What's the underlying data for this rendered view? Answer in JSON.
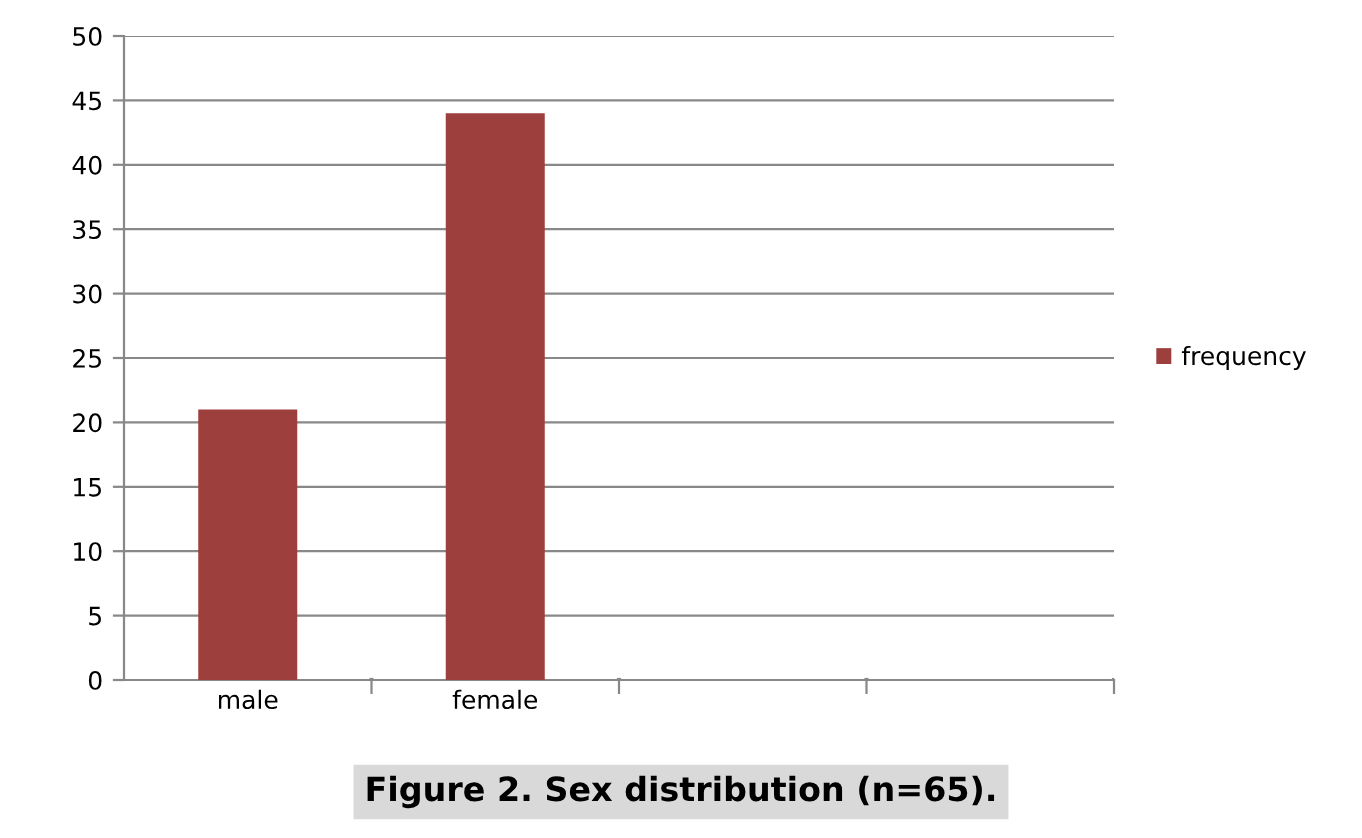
{
  "chart_data": {
    "type": "bar",
    "title": "Figure 2. Sex distribution (n=65).",
    "categories": [
      "male",
      "female",
      null,
      null
    ],
    "series": [
      {
        "name": "frequency",
        "color": "#9c3f3d",
        "values": [
          21,
          44,
          null,
          null
        ]
      }
    ],
    "ylim": [
      0,
      50
    ],
    "yticks": [
      0,
      5,
      10,
      15,
      20,
      25,
      30,
      35,
      40,
      45,
      50
    ],
    "grid": "y",
    "legend": "right"
  }
}
